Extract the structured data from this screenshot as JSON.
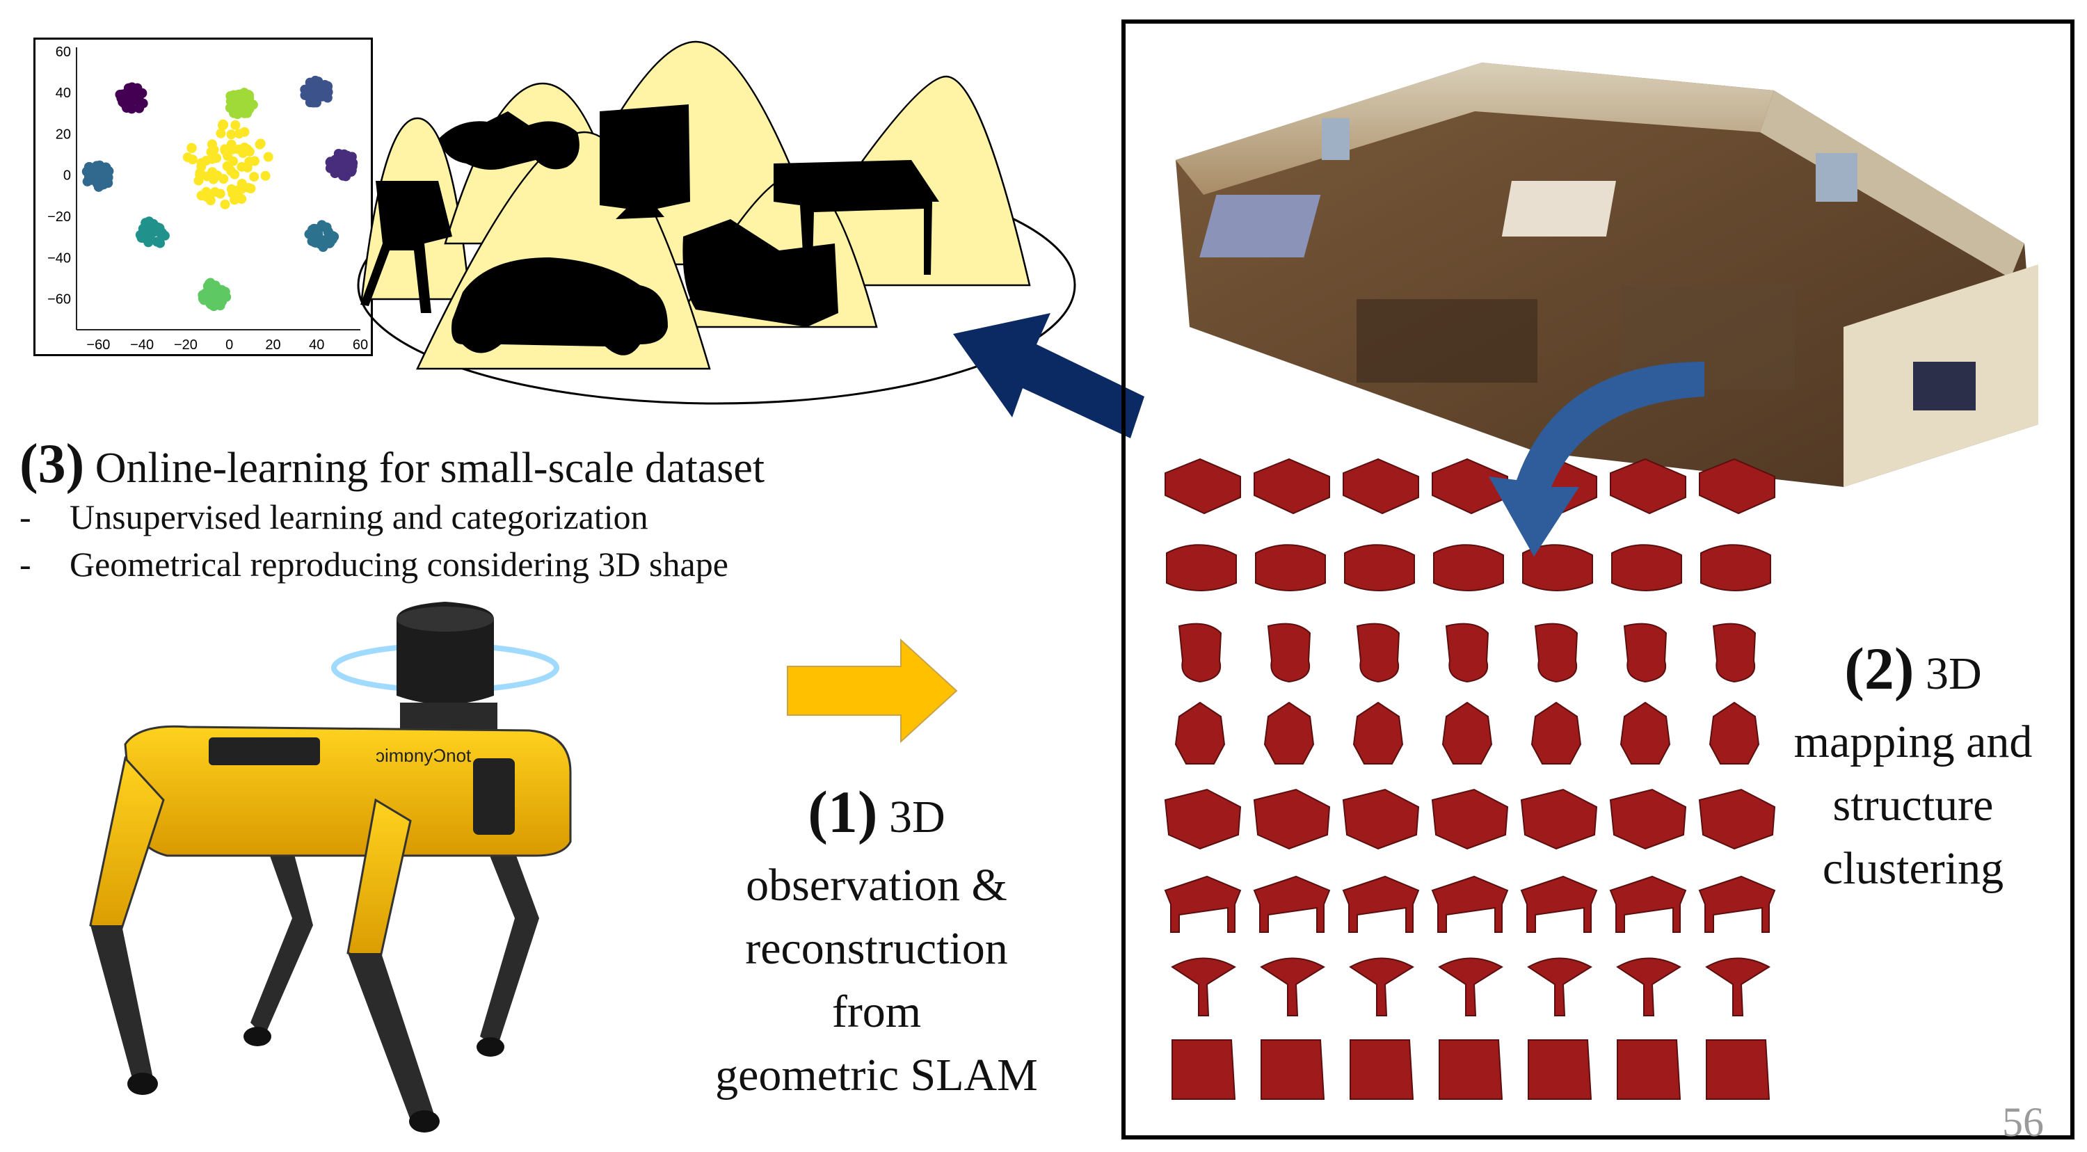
{
  "scatter": {
    "x_ticks": [
      "−60",
      "−40",
      "−20",
      "0",
      "20",
      "40",
      "60"
    ],
    "y_ticks": [
      "60",
      "40",
      "20",
      "0",
      "−20",
      "−40",
      "−60"
    ],
    "xlim": [
      -70,
      60
    ],
    "ylim": [
      -75,
      62
    ],
    "clusters": [
      {
        "x": -45,
        "y": 37,
        "color": "#440154"
      },
      {
        "x": 40,
        "y": 40,
        "color": "#3b528b"
      },
      {
        "x": 52,
        "y": 5,
        "color": "#472d7b"
      },
      {
        "x": -60,
        "y": 0,
        "color": "#31688e"
      },
      {
        "x": -35,
        "y": -28,
        "color": "#21918c"
      },
      {
        "x": 42,
        "y": -30,
        "color": "#2c728e"
      },
      {
        "x": -7,
        "y": -58,
        "color": "#5ec962"
      },
      {
        "x": 5,
        "y": 35,
        "color": "#a0da39"
      },
      {
        "x": 0,
        "y": 5,
        "color": "#fde725"
      }
    ]
  },
  "step3": {
    "number": "(3)",
    "title": "Online-learning for small-scale dataset",
    "bullets": [
      {
        "dash": "-",
        "text": "Unsupervised learning and categorization"
      },
      {
        "dash": "-",
        "text": "Geometrical reproducing considering 3D shape"
      }
    ]
  },
  "step1": {
    "number": "(1)",
    "head": "3D",
    "lines": [
      "observation &",
      "reconstruction",
      "from",
      "geometric SLAM"
    ]
  },
  "step2": {
    "number": "(2)",
    "head": "3D",
    "lines": [
      "mapping and",
      "structure",
      "clustering"
    ]
  },
  "robot": {
    "brand_text": "ɔimɒnyƆnot"
  },
  "page_number": "56",
  "colors": {
    "accent_yellow": "#ffc000",
    "navy_arrow": "#0b2a63",
    "blue_arrow": "#2f5c9a",
    "cone_fill": "#fff3a6",
    "shape_red": "#9f1b1b",
    "robot_yellow": "#f2b200"
  }
}
